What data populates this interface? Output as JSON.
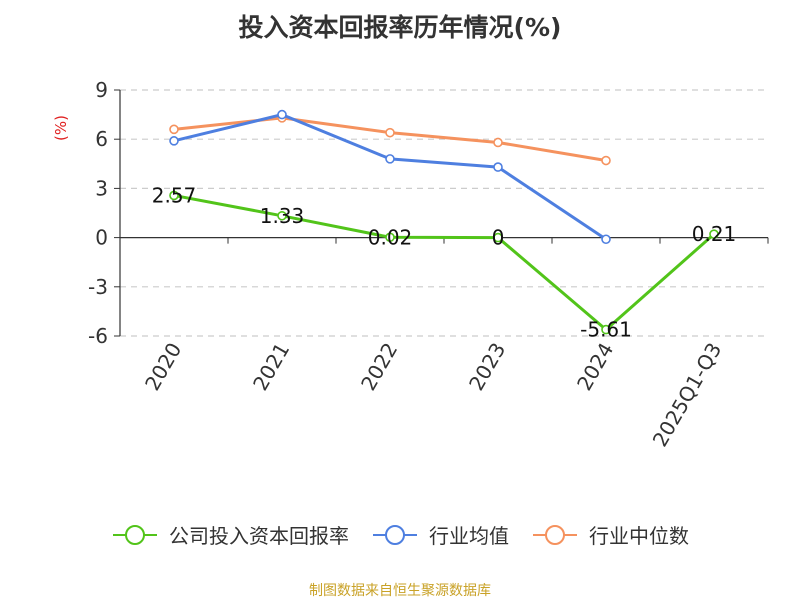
{
  "chart_data": {
    "type": "line",
    "title": "投入资本回报率历年情况(%)",
    "ylabel": "(%)",
    "xlabel": "",
    "categories": [
      "2020",
      "2021",
      "2022",
      "2023",
      "2024",
      "2025Q1-Q3"
    ],
    "ylim": [
      -6,
      9
    ],
    "yticks": [
      9,
      6,
      3,
      0,
      -3,
      -6
    ],
    "grid": true,
    "legend_position": "bottom",
    "series": [
      {
        "name": "公司投入资本回报率",
        "color": "#52c41a",
        "values": [
          2.57,
          1.33,
          0.02,
          0,
          -5.61,
          0.21
        ],
        "labels": [
          "2.57",
          "1.33",
          "0.02",
          "0",
          "-5.61",
          "0.21"
        ]
      },
      {
        "name": "行业均值",
        "color": "#4e7fe0",
        "values": [
          5.9,
          7.5,
          4.8,
          4.3,
          -0.1,
          null
        ]
      },
      {
        "name": "行业中位数",
        "color": "#f5925e",
        "values": [
          6.6,
          7.3,
          6.4,
          5.8,
          4.7,
          null
        ]
      }
    ]
  },
  "source": {
    "text": "制图数据来自恒生聚源数据库",
    "color": "#c9a227"
  },
  "colors": {
    "axis": "#333333",
    "grid": "#cccccc",
    "ylabel": "#e02020"
  }
}
